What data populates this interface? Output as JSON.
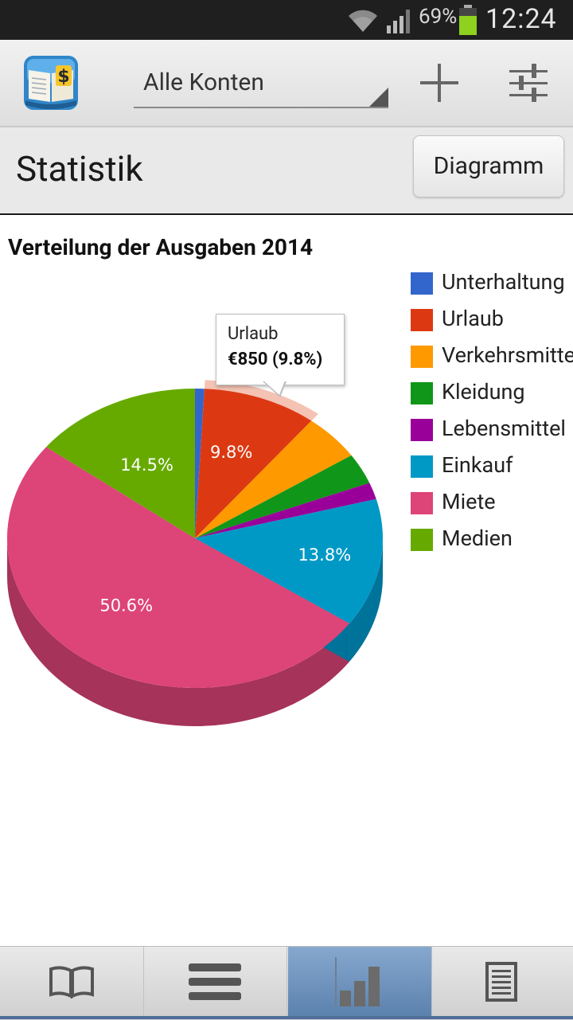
{
  "status_bar": {
    "battery_percent": "69%",
    "time": "12:24"
  },
  "action_bar": {
    "account_selector": "Alle Konten",
    "add_icon": "plus-icon",
    "filter_icon": "sliders-icon"
  },
  "header": {
    "title": "Statistik",
    "view_button": "Diagramm"
  },
  "tooltip": {
    "label": "Urlaub",
    "value": "€850 (9.8%)"
  },
  "colors": {
    "active_tab": "#5b81ad",
    "header_bg": "#e9e9e9"
  },
  "chart_data": {
    "type": "pie",
    "title": "Verteilung der Ausgaben 2014",
    "categories": [
      "Unterhaltung",
      "Urlaub",
      "Verkehrsmittel",
      "Kleidung",
      "Lebensmittel",
      "Einkauf",
      "Miete",
      "Medien"
    ],
    "values": [
      0.8,
      9.8,
      5.0,
      3.3,
      1.8,
      13.8,
      50.6,
      14.5
    ],
    "colors": [
      "#3366cc",
      "#dc3912",
      "#ff9900",
      "#109618",
      "#990099",
      "#0099c6",
      "#dd4477",
      "#66aa00"
    ],
    "side_colors": [
      "#264d99",
      "#a52b0e",
      "#bf7300",
      "#0c7112",
      "#730073",
      "#00739a",
      "#a63359",
      "#4d8000"
    ],
    "data_labels": [
      "",
      "9.8%",
      "",
      "",
      "",
      "13.8%",
      "50.6%",
      "14.5%"
    ],
    "legend": [
      "Unterhaltung",
      "Urlaub",
      "Verkehrsmittel",
      "Kleidung",
      "Lebensmittel",
      "Einkauf",
      "Miete",
      "Medien"
    ],
    "legend_position": "right",
    "highlighted": "Urlaub"
  },
  "bottom_nav": [
    "book-icon",
    "list-icon",
    "bar-chart-icon",
    "document-icon"
  ]
}
